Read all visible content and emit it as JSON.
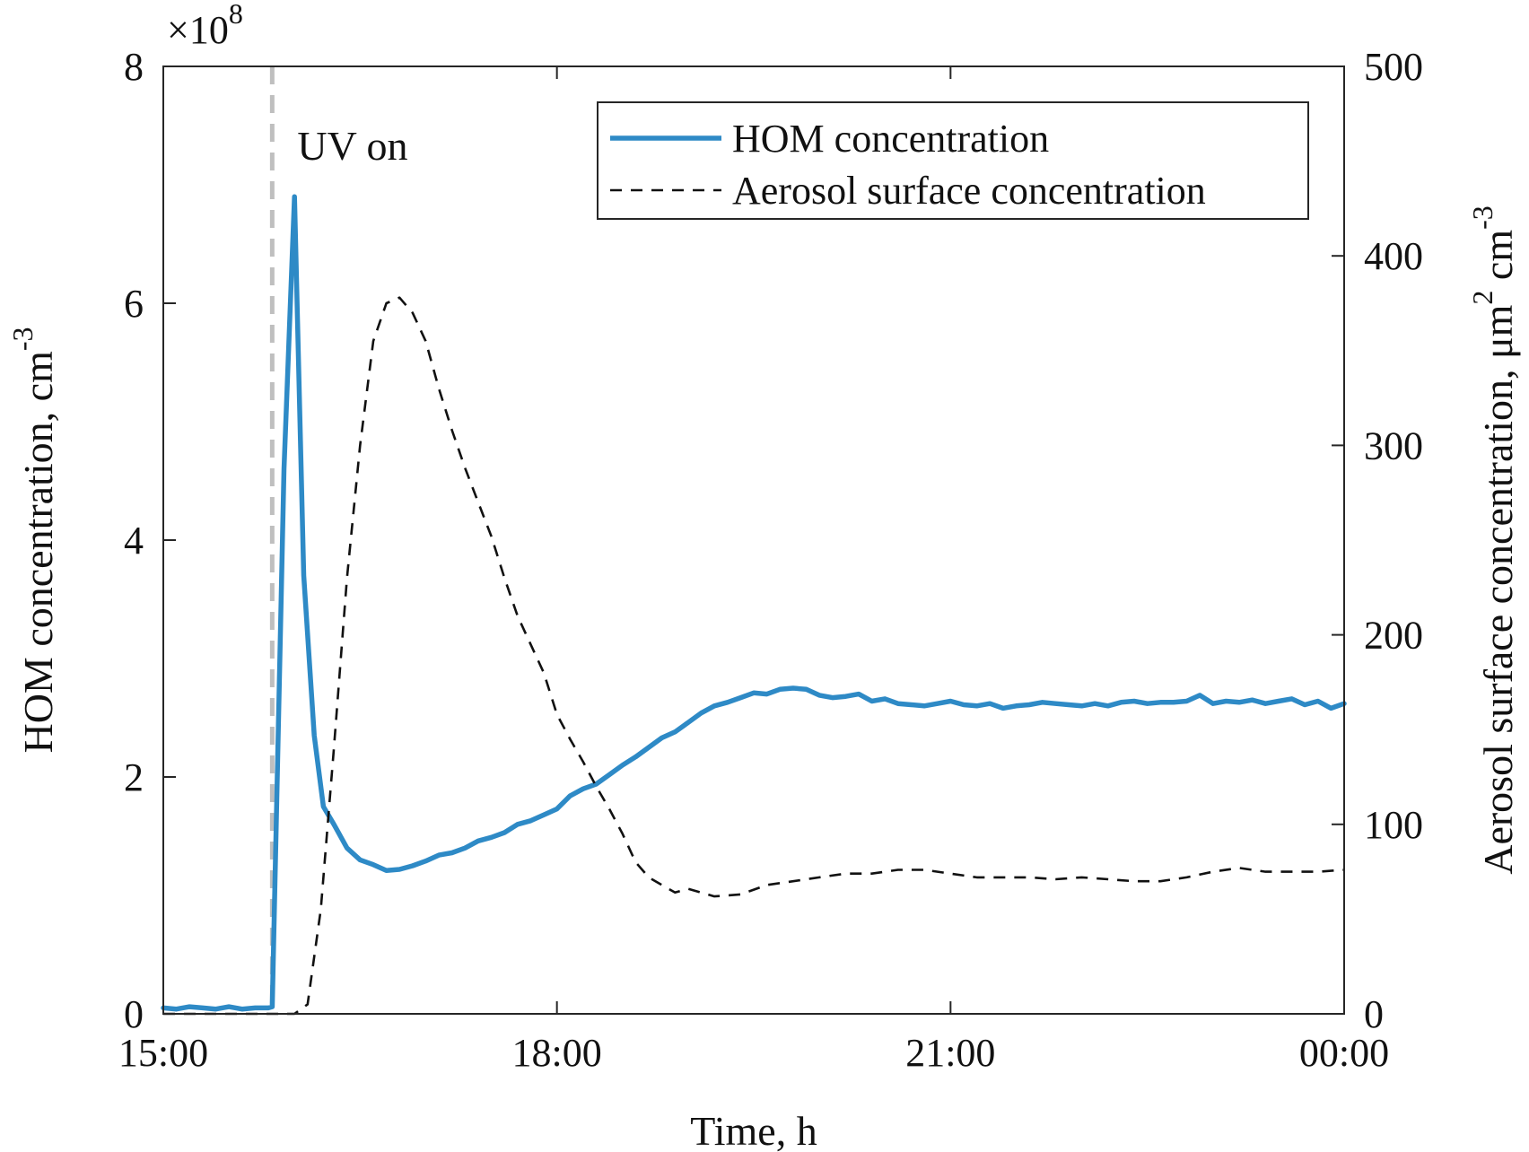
{
  "chart_data": {
    "type": "line",
    "title": "",
    "xlabel": "Time, h",
    "ylabel_left": "HOM concentration, cm",
    "ylabel_left_sup": "-3",
    "ylabel_right": "Aerosol surface concentration, μm",
    "ylabel_right_sup1": "2",
    "ylabel_right_mid": " cm",
    "ylabel_right_sup2": "-3",
    "y_left_multiplier": "×10",
    "y_left_multiplier_exp": "8",
    "xlim": [
      0,
      9
    ],
    "ylim_left": [
      0,
      8
    ],
    "ylim_right": [
      0,
      500
    ],
    "x_ticks": [
      0,
      3,
      6,
      9
    ],
    "x_tick_labels": [
      "15:00",
      "18:00",
      "21:00",
      "00:00"
    ],
    "y_left_ticks": [
      0,
      2,
      4,
      6,
      8
    ],
    "y_left_tick_labels": [
      "0",
      "2",
      "4",
      "6",
      "8"
    ],
    "y_right_ticks": [
      0,
      100,
      200,
      300,
      400,
      500
    ],
    "y_right_tick_labels": [
      "0",
      "100",
      "200",
      "300",
      "400",
      "500"
    ],
    "grid": false,
    "legend_position": "top-right",
    "annotations": [
      {
        "text": "UV on",
        "x": 0.83,
        "style": "vertical-dashed-line",
        "color": "#bfbfbf"
      }
    ],
    "series": [
      {
        "name": "HOM concentration",
        "axis": "left",
        "color": "#2e8ac6",
        "style": "solid",
        "x": [
          0,
          0.1,
          0.2,
          0.3,
          0.4,
          0.5,
          0.6,
          0.7,
          0.8,
          0.83,
          0.92,
          1.0,
          1.07,
          1.15,
          1.22,
          1.3,
          1.4,
          1.5,
          1.6,
          1.7,
          1.8,
          1.9,
          2.0,
          2.1,
          2.2,
          2.3,
          2.4,
          2.5,
          2.6,
          2.7,
          2.8,
          2.9,
          3.0,
          3.1,
          3.2,
          3.3,
          3.4,
          3.5,
          3.6,
          3.7,
          3.8,
          3.9,
          4.0,
          4.1,
          4.2,
          4.3,
          4.4,
          4.5,
          4.6,
          4.7,
          4.8,
          4.9,
          5.0,
          5.1,
          5.2,
          5.3,
          5.4,
          5.5,
          5.6,
          5.7,
          5.8,
          5.9,
          6.0,
          6.1,
          6.2,
          6.3,
          6.4,
          6.5,
          6.6,
          6.7,
          6.8,
          6.9,
          7.0,
          7.1,
          7.2,
          7.3,
          7.4,
          7.5,
          7.6,
          7.7,
          7.8,
          7.9,
          8.0,
          8.1,
          8.2,
          8.3,
          8.4,
          8.5,
          8.6,
          8.7,
          8.8,
          8.9,
          9.0
        ],
        "y": [
          0.05,
          0.04,
          0.06,
          0.05,
          0.04,
          0.06,
          0.04,
          0.05,
          0.05,
          0.06,
          4.6,
          6.9,
          3.7,
          2.35,
          1.75,
          1.6,
          1.4,
          1.3,
          1.26,
          1.21,
          1.22,
          1.25,
          1.29,
          1.34,
          1.36,
          1.4,
          1.46,
          1.49,
          1.53,
          1.6,
          1.63,
          1.68,
          1.73,
          1.84,
          1.9,
          1.94,
          2.02,
          2.1,
          2.17,
          2.25,
          2.33,
          2.38,
          2.46,
          2.54,
          2.6,
          2.63,
          2.67,
          2.71,
          2.7,
          2.74,
          2.75,
          2.74,
          2.69,
          2.67,
          2.68,
          2.7,
          2.64,
          2.66,
          2.62,
          2.61,
          2.6,
          2.62,
          2.64,
          2.61,
          2.6,
          2.62,
          2.58,
          2.6,
          2.61,
          2.63,
          2.62,
          2.61,
          2.6,
          2.62,
          2.6,
          2.63,
          2.64,
          2.62,
          2.63,
          2.63,
          2.64,
          2.69,
          2.62,
          2.64,
          2.63,
          2.65,
          2.62,
          2.64,
          2.66,
          2.61,
          2.64,
          2.58,
          2.62
        ]
      },
      {
        "name": "Aerosol surface concentration",
        "axis": "right",
        "color": "#111111",
        "style": "dashed",
        "x": [
          0,
          0.5,
          0.83,
          1.0,
          1.1,
          1.2,
          1.3,
          1.4,
          1.5,
          1.6,
          1.7,
          1.8,
          1.9,
          2.0,
          2.1,
          2.2,
          2.3,
          2.4,
          2.5,
          2.6,
          2.7,
          2.8,
          2.9,
          3.0,
          3.1,
          3.2,
          3.3,
          3.4,
          3.5,
          3.6,
          3.7,
          3.8,
          3.9,
          4.0,
          4.2,
          4.4,
          4.6,
          4.8,
          5.0,
          5.2,
          5.4,
          5.6,
          5.8,
          6.0,
          6.2,
          6.4,
          6.6,
          6.8,
          7.0,
          7.2,
          7.4,
          7.6,
          7.8,
          8.0,
          8.2,
          8.4,
          8.6,
          8.8,
          9.0
        ],
        "y": [
          0,
          0,
          0,
          0,
          5,
          55,
          140,
          230,
          300,
          355,
          375,
          378,
          370,
          355,
          330,
          308,
          288,
          270,
          252,
          230,
          210,
          195,
          180,
          158,
          145,
          133,
          120,
          108,
          95,
          80,
          72,
          68,
          64,
          66,
          62,
          63,
          68,
          70,
          72,
          74,
          74,
          76,
          76,
          74,
          72,
          72,
          72,
          71,
          72,
          71,
          70,
          70,
          72,
          75,
          77,
          75,
          75,
          75,
          76
        ]
      }
    ]
  }
}
